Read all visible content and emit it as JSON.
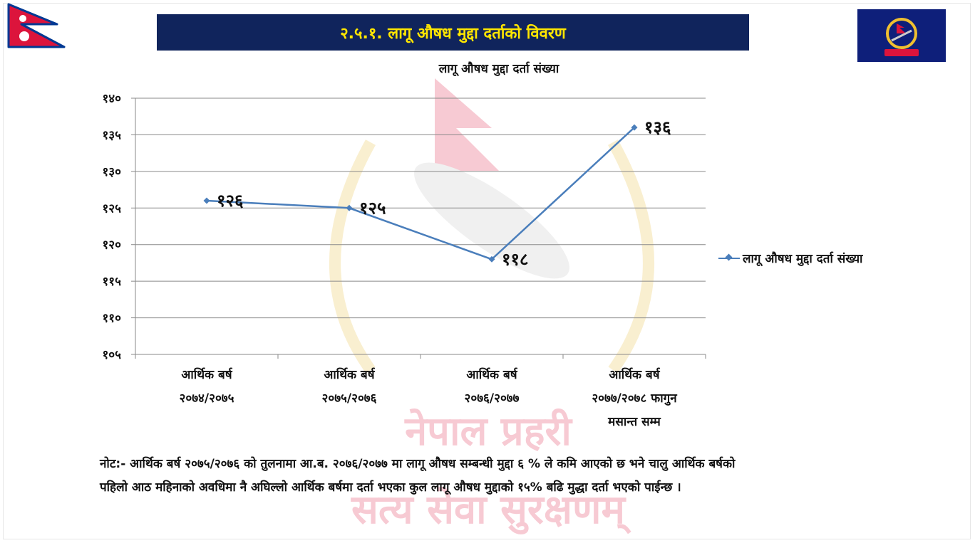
{
  "header": {
    "title": "२.५.१. लागू औषध मुद्दा दर्ताको विवरण"
  },
  "watermark": {
    "text_top": "नेपाल प्रहरी",
    "text_bottom": "सत्य सेवा सुरक्षणम्"
  },
  "colors": {
    "title_bar": "#10245c",
    "title_text": "#ffe600",
    "series_line": "#4a7ebb",
    "flag_red": "#dc143c",
    "flag_blue": "#003893"
  },
  "chart_data": {
    "type": "line",
    "title": "लागू औषध मुद्दा दर्ता संख्या",
    "categories": [
      [
        "आर्थिक बर्ष",
        "२०७४/२०७५"
      ],
      [
        "आर्थिक बर्ष",
        "२०७५/२०७६"
      ],
      [
        "आर्थिक बर्ष",
        "२०७६/२०७७"
      ],
      [
        "आर्थिक बर्ष",
        "२०७७/२०७८ फागुन",
        "मसान्त सम्म"
      ]
    ],
    "series": [
      {
        "name": "लागू औषध मुद्दा दर्ता संख्या",
        "values": [
          126,
          125,
          118,
          136
        ],
        "data_labels": [
          "१२६",
          "१२५",
          "११८",
          "१३६"
        ]
      }
    ],
    "ylim": [
      105,
      140
    ],
    "yticks": [
      105,
      110,
      115,
      120,
      125,
      130,
      135,
      140
    ],
    "ytick_labels": [
      "१०५",
      "११०",
      "११५",
      "१२०",
      "१२५",
      "१३०",
      "१३५",
      "१४०"
    ],
    "grid": true,
    "legend": "right"
  },
  "note": {
    "line1": "नोट:- आर्थिक बर्ष २०७५/२०७६ को तुलनामा आ.ब. २०७६/२०७७ मा लागू औषध सम्बन्धी मुद्दा ६ % ले कमि आएको छ भने चालु आर्थिक बर्षको",
    "line2": "पहिलो आठ महिनाको अवधिमा नै अघिल्लो आर्थिक बर्षमा दर्ता भएका कुल लागू औषध मुद्दाको १५% बढि मुद्धा दर्ता भएको पाईन्छ  ।"
  }
}
